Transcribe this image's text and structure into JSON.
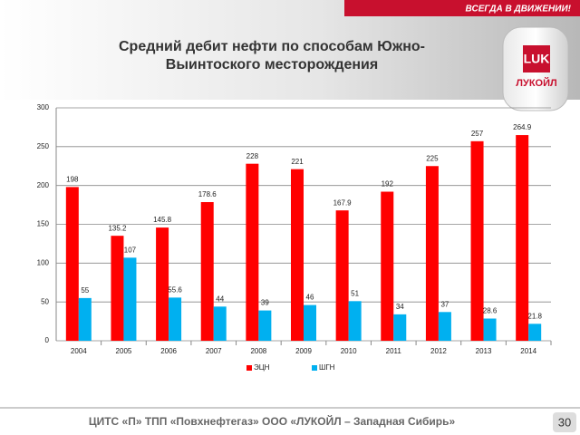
{
  "slide": {
    "banner": "ВСЕГДА В ДВИЖЕНИИ!",
    "logo": "ЛУКОЙЛ",
    "footer": "ЦИТС «П» ТПП «Повхнефтегаз» ООО «ЛУКОЙЛ – Западная Сибирь»",
    "page_number": "30"
  },
  "chart_data": {
    "type": "bar",
    "title": [
      "Средний дебит нефти по способам  Южно-",
      "Выинтоского месторождения"
    ],
    "categories": [
      "2004",
      "2005",
      "2006",
      "2007",
      "2008",
      "2009",
      "2010",
      "2011",
      "2012",
      "2013",
      "2014"
    ],
    "series": [
      {
        "name": "ЭЦН",
        "color": "#ff0000",
        "values": [
          198,
          135.2,
          145.8,
          178.6,
          228,
          221,
          167.9,
          192,
          225,
          257,
          264.9
        ]
      },
      {
        "name": "ШГН",
        "color": "#00b0f0",
        "values": [
          55,
          107,
          55.6,
          44,
          39,
          46,
          51,
          34,
          37,
          28.6,
          21.8
        ]
      }
    ],
    "ylim": [
      0,
      300
    ],
    "yticks": [
      0,
      50,
      100,
      150,
      200,
      250,
      300
    ],
    "grid": true,
    "legend": "bottom"
  }
}
